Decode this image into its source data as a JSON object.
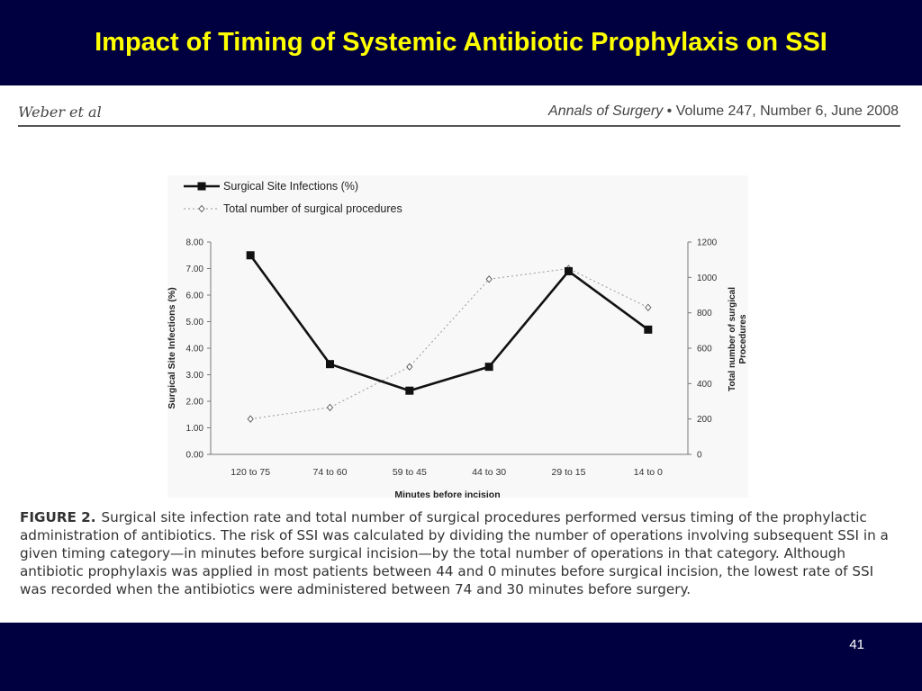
{
  "slide": {
    "title": "Impact of Timing of Systemic Antibiotic Prophylaxis on SSI",
    "page_number": "41"
  },
  "journal": {
    "authors": "Weber et al",
    "journal_name": "Annals of Surgery",
    "bullet": "•",
    "issue": "Volume 247, Number 6, June 2008"
  },
  "chart_data": {
    "type": "line",
    "categories": [
      "120 to 75",
      "74 to 60",
      "59 to 45",
      "44 to 30",
      "29 to 15",
      "14 to 0"
    ],
    "series": [
      {
        "name": "Surgical Site Infections (%)",
        "axis": "left",
        "values": [
          7.5,
          3.4,
          2.4,
          3.3,
          6.9,
          4.7
        ],
        "marker": "filled-square",
        "style": "solid"
      },
      {
        "name": "Total number of surgical procedures",
        "axis": "right",
        "values": [
          200,
          265,
          495,
          990,
          1050,
          830
        ],
        "marker": "open-diamond",
        "style": "dotted"
      }
    ],
    "xlabel": "Minutes before incision",
    "ylabel": "Surgical Site Infections (%)",
    "y2label": "Total number of surgical Procedures",
    "ylim": [
      0,
      8
    ],
    "y2lim": [
      0,
      1200
    ],
    "yticks": [
      "0.00",
      "1.00",
      "2.00",
      "3.00",
      "4.00",
      "5.00",
      "6.00",
      "7.00",
      "8.00"
    ],
    "y2ticks": [
      "0",
      "200",
      "400",
      "600",
      "800",
      "1000",
      "1200"
    ],
    "legend_position": "top-left",
    "grid": false,
    "colors": {
      "ssi": "#111111",
      "procedures": "#999999"
    }
  },
  "caption": {
    "label": "FIGURE 2.",
    "text": "Surgical site infection rate and total number of surgical procedures performed versus timing of the prophylactic administration of antibiotics. The risk of SSI was calculated by dividing the number of operations involving subsequent SSI in a given timing category—in minutes before surgical incision—by the total number of operations in that category. Although antibiotic prophylaxis was applied in most patients between 44 and 0 minutes before surgical incision, the lowest rate of SSI was recorded when the antibiotics were administered between 74 and 30 minutes before surgery."
  }
}
